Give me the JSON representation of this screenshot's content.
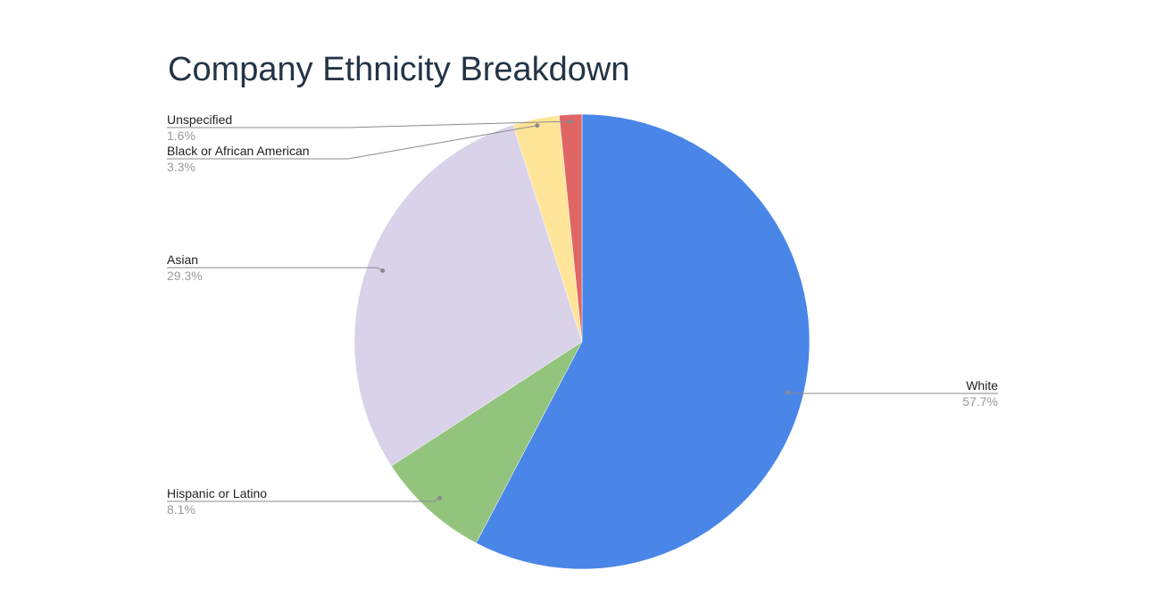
{
  "chart_data": {
    "type": "pie",
    "title": "Company Ethnicity Breakdown",
    "slices": [
      {
        "name": "White",
        "value": 57.7,
        "label": "57.7%",
        "color": "#4a86e8"
      },
      {
        "name": "Hispanic or Latino",
        "value": 8.1,
        "label": "8.1%",
        "color": "#93c47d"
      },
      {
        "name": "Asian",
        "value": 29.3,
        "label": "29.3%",
        "color": "#d9d2e9"
      },
      {
        "name": "Black or African American",
        "value": 3.3,
        "label": "3.3%",
        "color": "#ffe599"
      },
      {
        "name": "Unspecified",
        "value": 1.6,
        "label": "1.6%",
        "color": "#e06666"
      }
    ]
  }
}
